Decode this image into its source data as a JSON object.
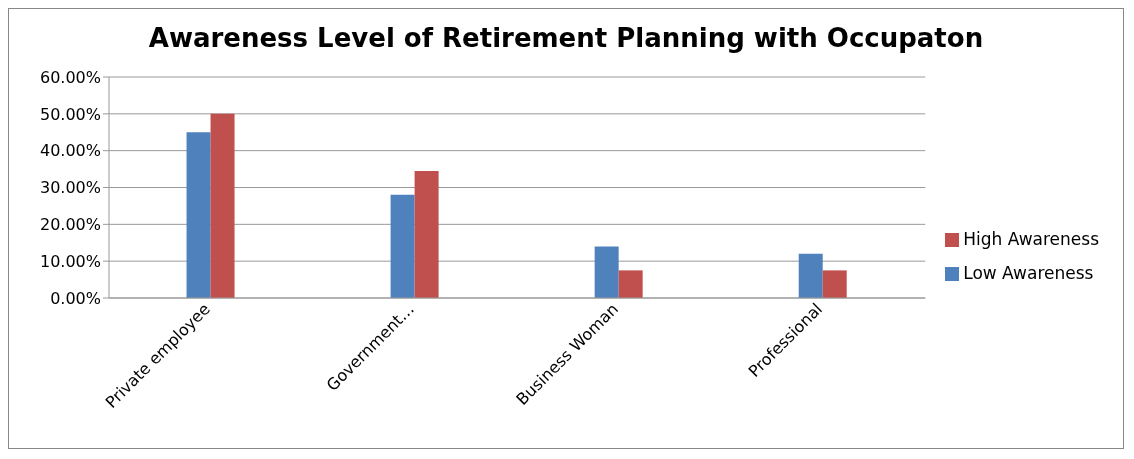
{
  "chart_data": {
    "type": "bar",
    "title": "Awareness Level of Retirement Planning with Occupaton",
    "categories": [
      "Private employee",
      "Government…",
      "Business Woman",
      "Professional"
    ],
    "series": [
      {
        "name": "Low Awareness",
        "color": "#4f81bd",
        "values": [
          45,
          28,
          14,
          12
        ]
      },
      {
        "name": "High Awareness",
        "color": "#c0504d",
        "values": [
          50,
          34.5,
          7.5,
          7.5
        ]
      }
    ],
    "ylim": [
      0,
      60
    ],
    "yticks": [
      {
        "value": 0,
        "label": "0.00%"
      },
      {
        "value": 10,
        "label": "10.00%"
      },
      {
        "value": 20,
        "label": "20.00%"
      },
      {
        "value": 30,
        "label": "30.00%"
      },
      {
        "value": 40,
        "label": "40.00%"
      },
      {
        "value": 50,
        "label": "50.00%"
      },
      {
        "value": 60,
        "label": "60.00%"
      }
    ],
    "grid": "y",
    "legend": "right"
  }
}
